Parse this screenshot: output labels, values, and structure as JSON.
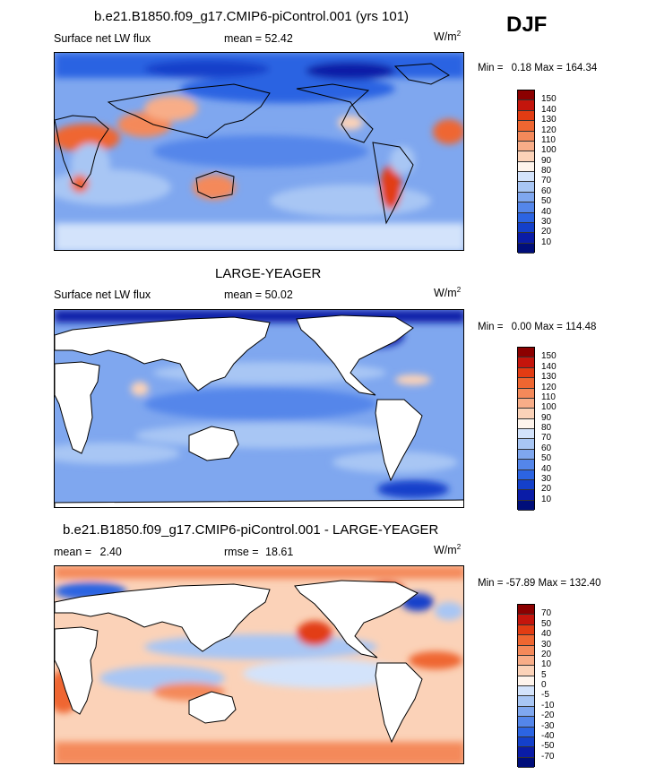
{
  "season": "DJF",
  "units": "W/m",
  "units_exp": "2",
  "stats_labels": {
    "min": "Min =",
    "max": "Max =",
    "mean": "mean =",
    "rmse": "rmse ="
  },
  "colorbars": {
    "abs": {
      "levels": [
        "150",
        "140",
        "130",
        "120",
        "110",
        "100",
        "90",
        "80",
        "70",
        "60",
        "50",
        "40",
        "30",
        "20",
        "10"
      ],
      "colors": [
        "#8b0000",
        "#c4150c",
        "#e23c13",
        "#ef6631",
        "#f4895a",
        "#f8ad88",
        "#fbd2b8",
        "#fef4ec",
        "#d3e3fb",
        "#a8c6f4",
        "#7fa7ef",
        "#5486ea",
        "#2c64e2",
        "#1440ca",
        "#0a1ca7",
        "#000e7a"
      ]
    },
    "diff": {
      "levels": [
        "70",
        "50",
        "40",
        "30",
        "20",
        "10",
        "5",
        "0",
        "-5",
        "-10",
        "-20",
        "-30",
        "-40",
        "-50",
        "-70"
      ],
      "colors": [
        "#8b0000",
        "#c4150c",
        "#e23c13",
        "#ef6631",
        "#f4895a",
        "#f8ad88",
        "#fbd2b8",
        "#fef4ec",
        "#d3e3fb",
        "#a8c6f4",
        "#7fa7ef",
        "#5486ea",
        "#2c64e2",
        "#1440ca",
        "#0a1ca7",
        "#000e7a"
      ]
    }
  },
  "chart_data": [
    {
      "type": "heatmap",
      "title": "b.e21.B1850.f09_g17.CMIP6-piControl.001 (yrs 101)",
      "variable": "Surface net LW flux",
      "mean_value": "52.42",
      "min_value": "0.18",
      "max_value": "164.34",
      "units": "W/m2",
      "colorbar": "abs"
    },
    {
      "type": "heatmap",
      "title": "LARGE-YEAGER",
      "variable": "Surface net LW flux",
      "mean_value": "50.02",
      "min_value": "0.00",
      "max_value": "114.48",
      "units": "W/m2",
      "colorbar": "abs"
    },
    {
      "type": "heatmap",
      "title": "b.e21.B1850.f09_g17.CMIP6-piControl.001 - LARGE-YEAGER",
      "mean_value": "2.40",
      "rmse_value": "18.61",
      "min_value": "-57.89",
      "max_value": "132.40",
      "units": "W/m2",
      "colorbar": "diff"
    }
  ]
}
